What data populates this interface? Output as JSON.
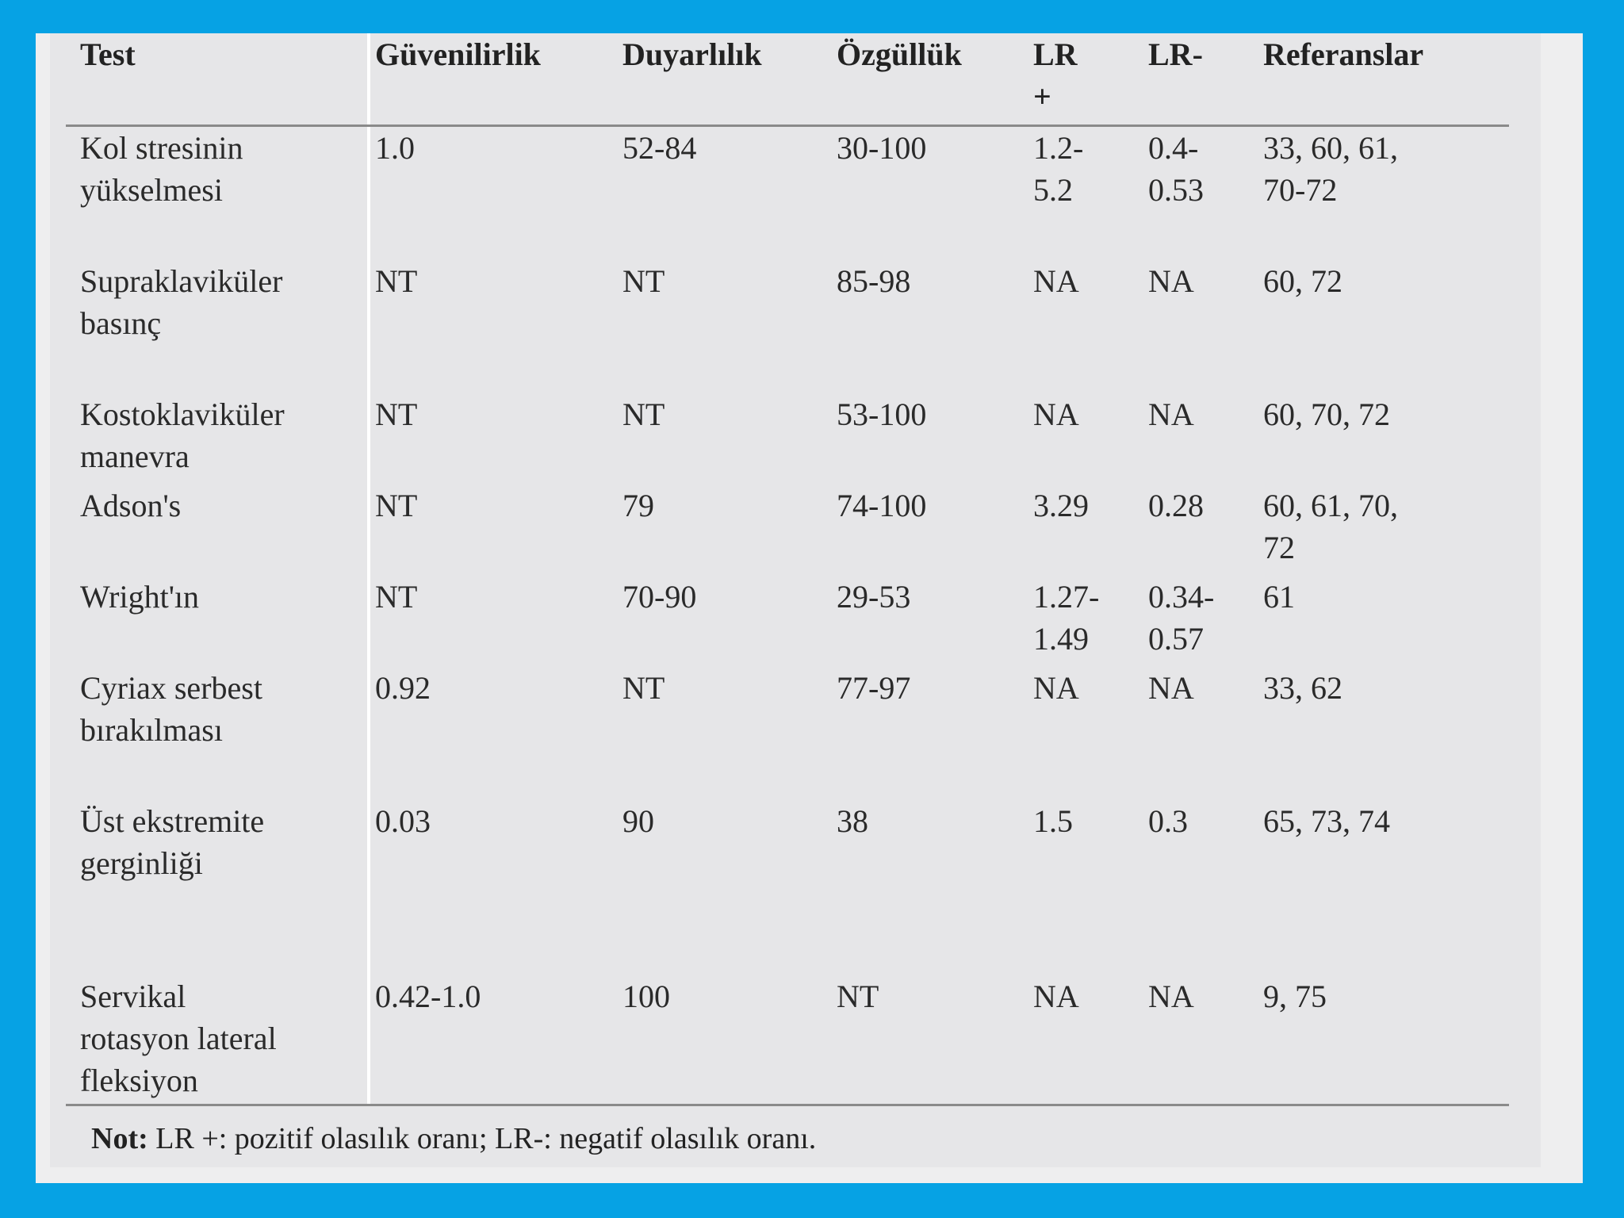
{
  "table": {
    "headers": [
      "Test",
      "Güvenilirlik",
      "Duyarlılık",
      "Özgüllük",
      "LR\n+",
      "LR-",
      "Referanslar"
    ],
    "rows": [
      [
        "Kol stresinin\nyükselmesi",
        "1.0",
        "52-84",
        "30-100",
        "1.2-\n5.2",
        "0.4-\n0.53",
        "33, 60, 61,\n70-72"
      ],
      [
        "Supraklaviküler\nbasınç",
        "NT",
        "NT",
        "85-98",
        "NA",
        "NA",
        "60, 72"
      ],
      [
        "Kostoklaviküler\nmanevra",
        "NT",
        "NT",
        "53-100",
        "NA",
        "NA",
        "60, 70, 72"
      ],
      [
        "Adson's",
        "NT",
        "79",
        "74-100",
        "3.29",
        "0.28",
        "60, 61, 70,\n72"
      ],
      [
        "Wright'ın",
        "NT",
        "70-90",
        "29-53",
        "1.27-\n1.49",
        "0.34-\n0.57",
        "61"
      ],
      [
        "Cyriax serbest\nbırakılması",
        "0.92",
        "NT",
        "77-97",
        "NA",
        "NA",
        "33, 62"
      ],
      [
        "Üst ekstremite\ngerginliği",
        "0.03",
        "90",
        "38",
        "1.5",
        "0.3",
        "65, 73, 74"
      ],
      [
        "Servikal\nrotasyon lateral\nfleksiyon",
        "0.42-1.0",
        "100",
        "NT",
        "NA",
        "NA",
        "9, 75"
      ]
    ]
  },
  "note": {
    "label": "Not:",
    "text": " LR +: pozitif olasılık oranı; LR-: negatif olasılık oranı."
  },
  "colors": {
    "frame": "#06a2e4",
    "panel": "#eeeeef",
    "table_bg": "#e6e6e8",
    "rule": "#8a8a8a",
    "text": "#2a2a2a"
  }
}
